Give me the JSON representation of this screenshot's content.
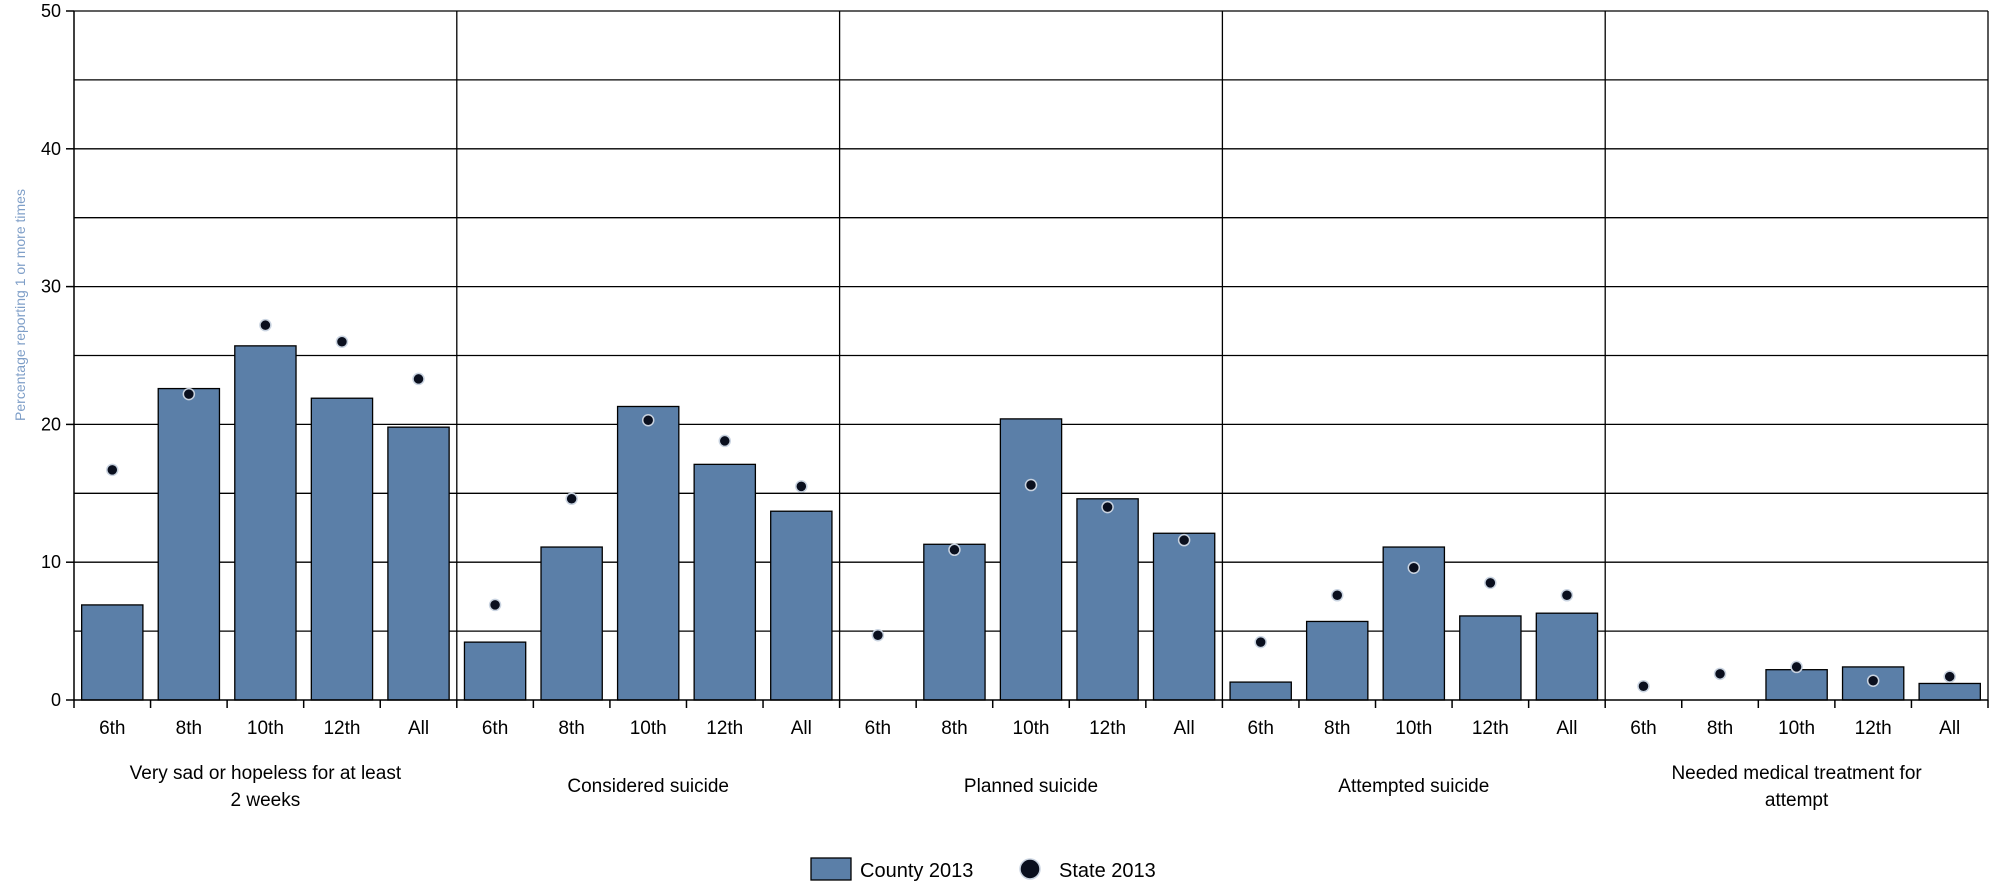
{
  "chart_data": {
    "type": "bar",
    "ylabel": "Percentage reporting 1 or more times",
    "ylim": [
      0,
      50
    ],
    "yticks": [
      0,
      10,
      20,
      30,
      40,
      50
    ],
    "gridlines_every": 5,
    "grid": true,
    "legend_position": "bottom-center",
    "colors": {
      "county": "#5b7fa8",
      "state": "#0a0f1e",
      "state_outline": "#c9d3e0",
      "ylabel": "#7f9fc8"
    },
    "subcategories": [
      "6th",
      "8th",
      "10th",
      "12th",
      "All"
    ],
    "groups": [
      {
        "label_line1": "Very sad or hopeless for at least",
        "label_line2": "2 weeks",
        "county": [
          6.9,
          22.6,
          25.7,
          21.9,
          19.8
        ],
        "state": [
          16.7,
          22.2,
          27.2,
          26.0,
          23.3
        ]
      },
      {
        "label_line1": "Considered suicide",
        "label_line2": "",
        "county": [
          4.2,
          11.1,
          21.3,
          17.1,
          13.7
        ],
        "state": [
          6.9,
          14.6,
          20.3,
          18.8,
          15.5
        ]
      },
      {
        "label_line1": "Planned suicide",
        "label_line2": "",
        "county": [
          null,
          11.3,
          20.4,
          14.6,
          12.1
        ],
        "state": [
          4.7,
          10.9,
          15.6,
          14.0,
          11.6
        ]
      },
      {
        "label_line1": "Attempted suicide",
        "label_line2": "",
        "county": [
          1.3,
          5.7,
          11.1,
          6.1,
          6.3
        ],
        "state": [
          4.2,
          7.6,
          9.6,
          8.5,
          7.6
        ]
      },
      {
        "label_line1": "Needed medical treatment for",
        "label_line2": "attempt",
        "county": [
          null,
          null,
          2.2,
          2.4,
          1.2
        ],
        "state": [
          1.0,
          1.9,
          2.4,
          1.4,
          1.7
        ]
      }
    ],
    "series": [
      {
        "name": "County 2013",
        "key": "county",
        "mark": "bar"
      },
      {
        "name": "State 2013",
        "key": "state",
        "mark": "dot"
      }
    ]
  }
}
